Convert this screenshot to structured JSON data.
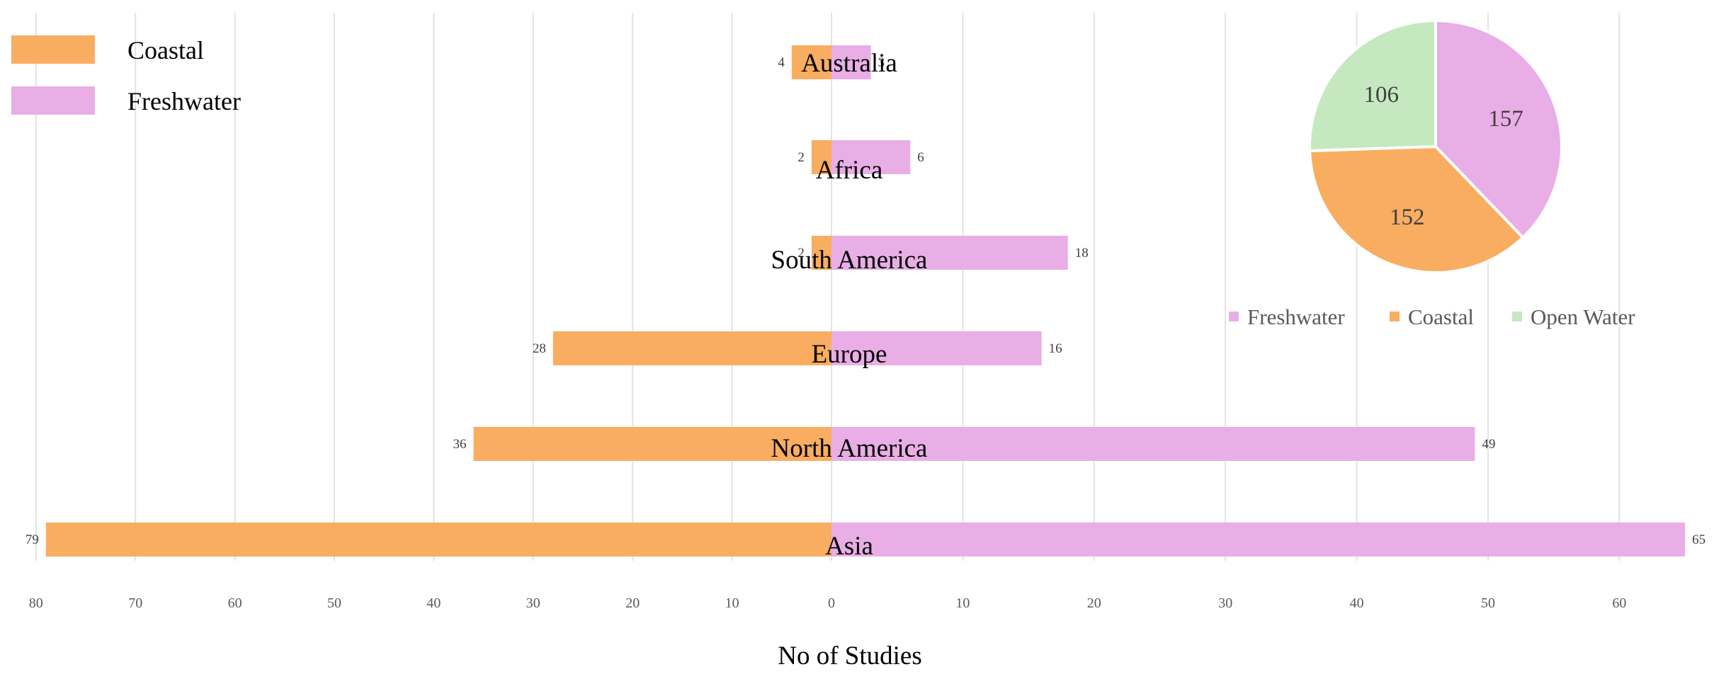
{
  "chart_data": [
    {
      "type": "bar",
      "orientation": "horizontal-diverging",
      "categories": [
        "Australia",
        "Africa",
        "South America",
        "Europe",
        "North America",
        "Asia"
      ],
      "series": [
        {
          "name": "Coastal",
          "values": [
            4,
            2,
            2,
            28,
            36,
            79
          ],
          "color": "#f9ad60"
        },
        {
          "name": "Freshwater",
          "values": [
            3,
            6,
            18,
            16,
            49,
            65
          ],
          "color": "#e9aee6"
        }
      ],
      "xlabel": "No of Studies",
      "xlim_left": [
        80,
        0
      ],
      "xlim_right": [
        0,
        65
      ],
      "x_ticks_left": [
        "80",
        "70",
        "60",
        "50",
        "40",
        "30",
        "20",
        "10",
        "0"
      ],
      "x_ticks_right": [
        "10",
        "20",
        "30",
        "40",
        "50",
        "60"
      ],
      "grid": true,
      "legend_placement": "top-left"
    },
    {
      "type": "pie",
      "slices": [
        {
          "name": "Freshwater",
          "value": 157,
          "color": "#e9aee6"
        },
        {
          "name": "Coastal",
          "value": 152,
          "color": "#f9ad60"
        },
        {
          "name": "Open Water",
          "value": 106,
          "color": "#c6e8c0"
        }
      ],
      "legend_placement": "bottom"
    }
  ]
}
